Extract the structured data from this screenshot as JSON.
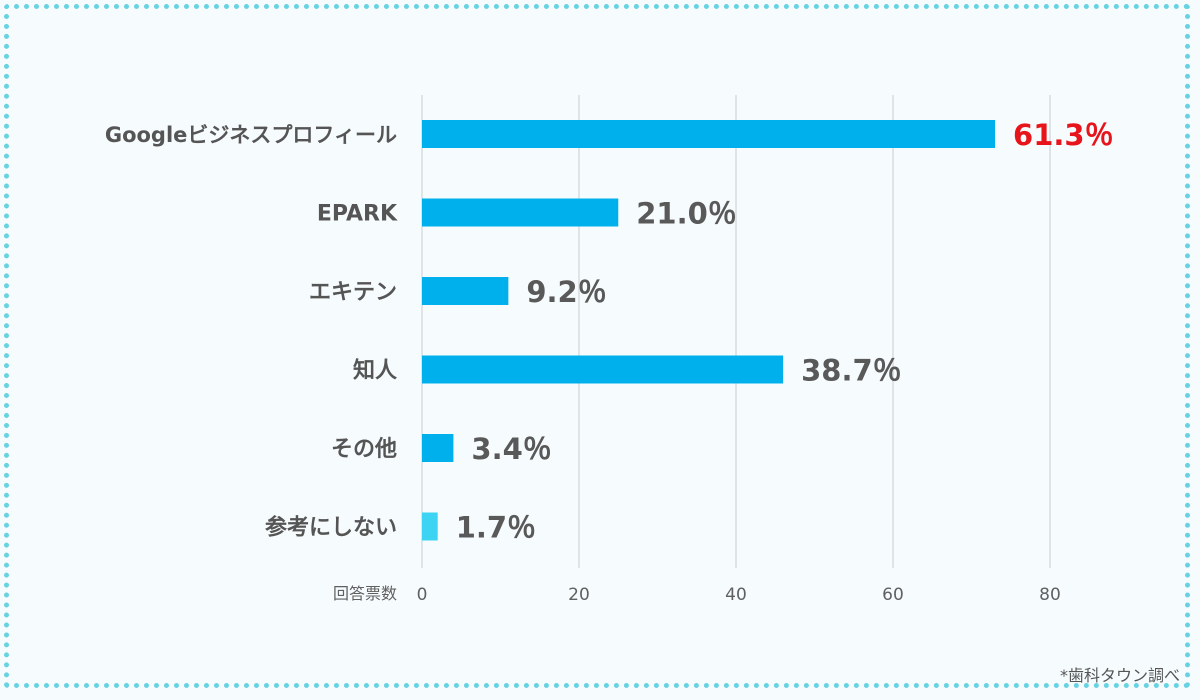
{
  "chart_data": {
    "type": "bar",
    "orientation": "horizontal",
    "categories": [
      "Googleビジネスプロフィール",
      "EPARK",
      "エキテン",
      "知人",
      "その他",
      "参考にしない"
    ],
    "values": [
      73,
      25,
      11,
      46,
      4,
      2
    ],
    "data_labels": [
      "61.3％",
      "21.0％",
      "9.2％",
      "38.7％",
      "3.4％",
      "1.7％"
    ],
    "highlight_index": 0,
    "xlabel": "回答票数",
    "xticks": [
      0,
      20,
      40,
      60,
      80
    ],
    "xlim": [
      0,
      87
    ],
    "grid": true,
    "colors": {
      "bar": "#00b0ec",
      "bar_last": "#3cd4f2",
      "highlight_label": "#e8141b",
      "label": "#595959"
    }
  },
  "source_note": "*歯科タウン調べ"
}
